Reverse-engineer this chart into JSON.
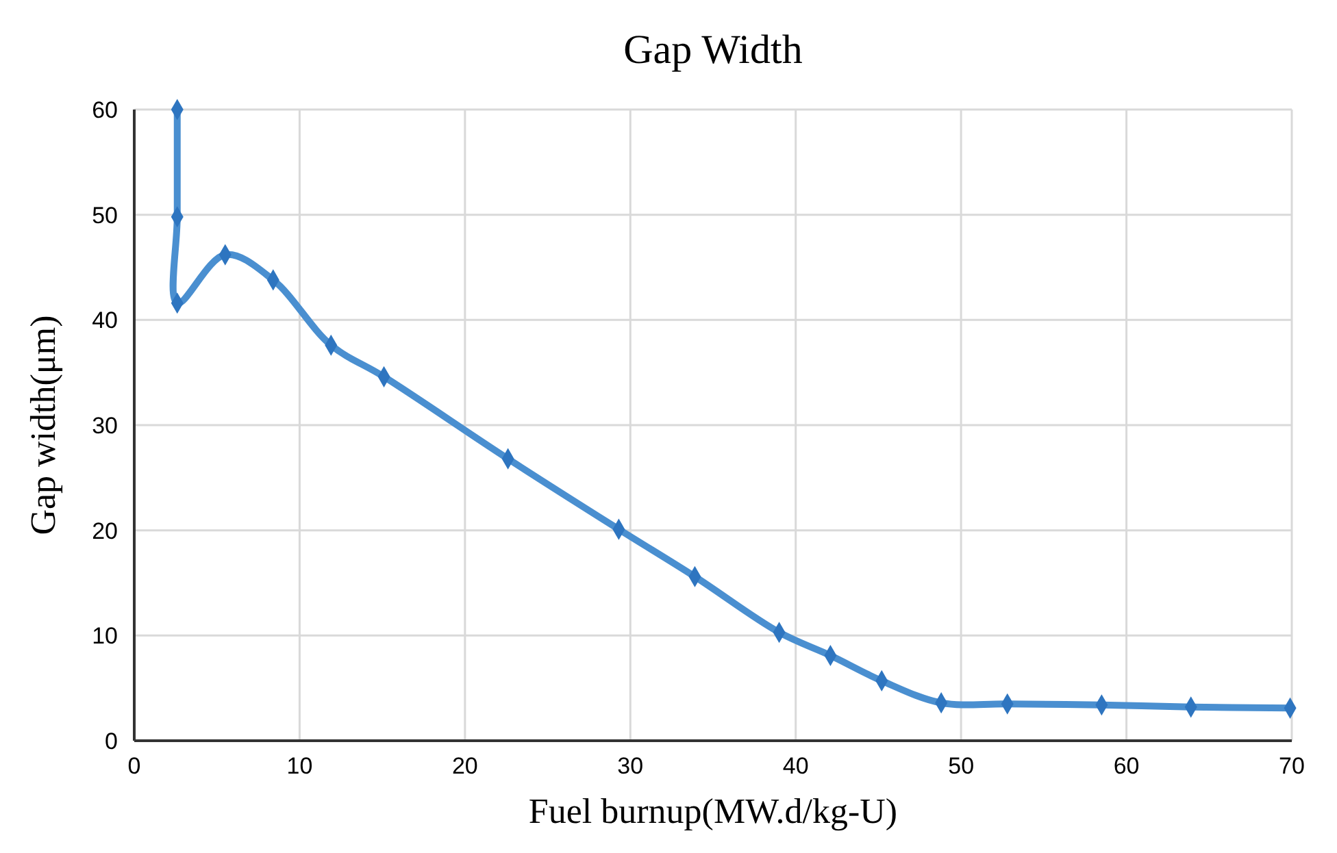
{
  "chart_data": {
    "type": "line",
    "title": "Gap Width",
    "xlabel": "Fuel burnup(MW.d/kg-U)",
    "ylabel": "Gap width(μm)",
    "x": [
      2.6,
      2.6,
      2.6,
      5.5,
      8.4,
      11.9,
      15.1,
      22.6,
      29.3,
      33.9,
      39.0,
      42.1,
      45.2,
      48.8,
      52.8,
      58.5,
      63.9,
      69.9
    ],
    "series": [
      {
        "color": "#4a8fd0",
        "values": [
          60,
          49.8,
          41.6,
          46.2,
          43.8,
          37.6,
          34.6,
          26.8,
          20.1,
          15.6,
          10.3,
          8.1,
          5.7,
          3.6,
          3.5,
          3.4,
          3.2,
          3.1
        ]
      }
    ],
    "xlim": [
      0,
      70
    ],
    "xticks": [
      0,
      10,
      20,
      30,
      40,
      50,
      60,
      70
    ],
    "ylim": [
      0,
      60
    ],
    "yticks": [
      0,
      10,
      20,
      30,
      40,
      50,
      60
    ],
    "grid": true,
    "marker": "diamond",
    "line_style": "solid"
  }
}
